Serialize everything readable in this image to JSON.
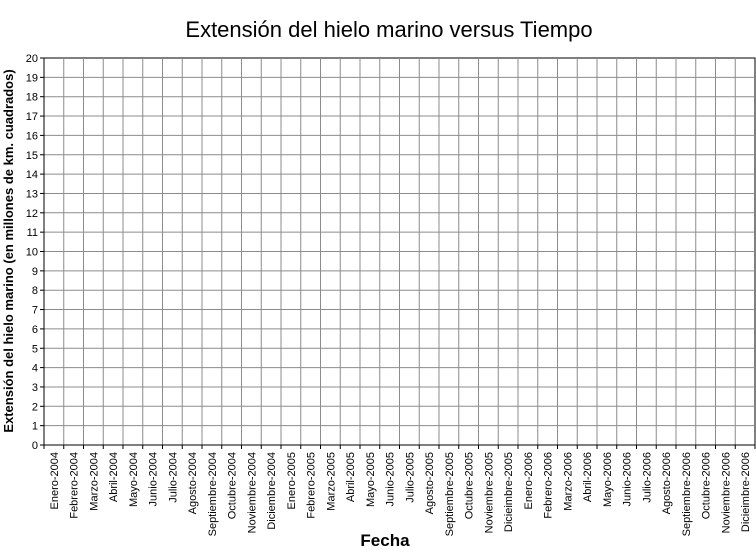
{
  "chart_data": {
    "type": "line",
    "title": "Extensión del hielo marino versus Tiempo",
    "xlabel": "Fecha",
    "ylabel": "Extensión del hielo marino (en millones de km. cuadrados)",
    "ylim": [
      0,
      20
    ],
    "ytick_step": 1,
    "grid": true,
    "categories": [
      "Enero-2004",
      "Febrero-2004",
      "Marzo-2004",
      "Abril-2004",
      "Mayo-2004",
      "Junio-2004",
      "Julio-2004",
      "Agosto-2004",
      "Septiembre-2004",
      "Octubre-2004",
      "Noviembre-2004",
      "Diciembre-2004",
      "Enero-2005",
      "Febrero-2005",
      "Marzo-2005",
      "Abril-2005",
      "Mayo-2005",
      "Junio-2005",
      "Julio-2005",
      "Agosto-2005",
      "Septiembre-2005",
      "Octubre-2005",
      "Noviembre-2005",
      "Dicieimbre-2005",
      "Enero-2006",
      "Febrero-2006",
      "Marzo-2006",
      "Abril-2006",
      "Mayo-2006",
      "Junio-2006",
      "Julio-2006",
      "Agosto-2006",
      "Septiembre-2006",
      "Octubre-2006",
      "Noviembre-2006",
      "Dicieimbre-2006"
    ],
    "series": []
  }
}
